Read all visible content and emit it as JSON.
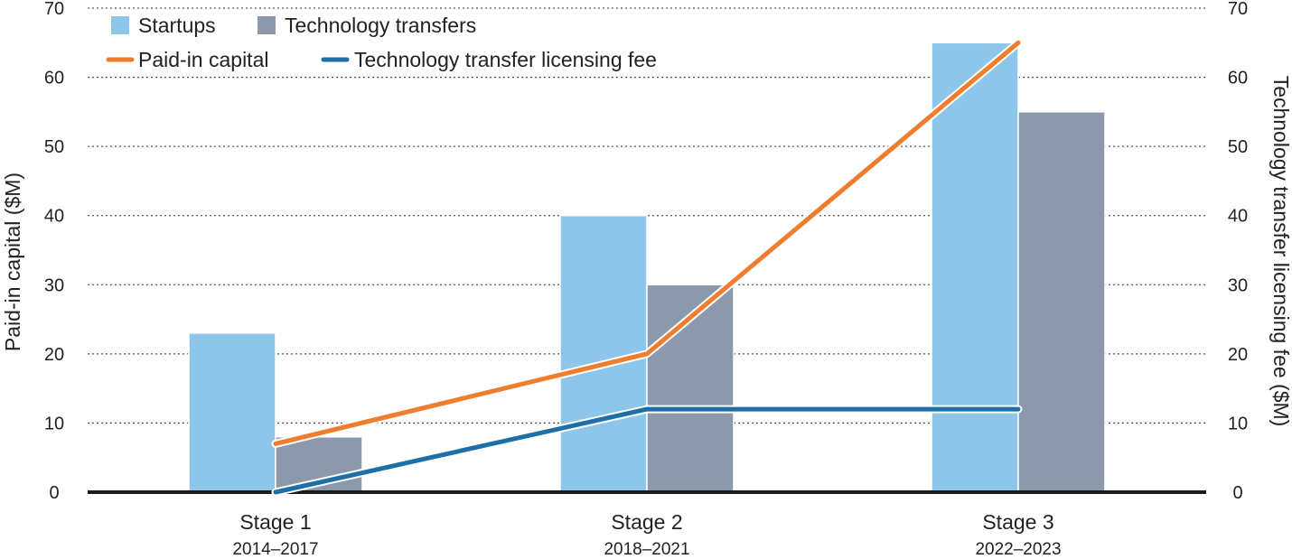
{
  "chart_data": {
    "type": "bar",
    "categories": [
      "Stage 1",
      "Stage 2",
      "Stage 3"
    ],
    "category_sublabels": [
      "2014–2017",
      "2018–2021",
      "2022–2023"
    ],
    "series": [
      {
        "name": "Startups",
        "kind": "bar",
        "axis": "left",
        "color": "#8dc6e8",
        "values": [
          23,
          40,
          65
        ]
      },
      {
        "name": "Technology transfers",
        "kind": "bar",
        "axis": "left",
        "color": "#8c99ac",
        "values": [
          8,
          30,
          55
        ]
      },
      {
        "name": "Paid-in capital",
        "kind": "line",
        "axis": "left",
        "color": "#f07d2d",
        "values": [
          7,
          20,
          65
        ]
      },
      {
        "name": "Technology transfer licensing fee",
        "kind": "line",
        "axis": "right",
        "color": "#1d6fa8",
        "values": [
          0,
          12,
          12
        ]
      }
    ],
    "ylabel": "Paid-in capital ($M)",
    "ylabel_right": "Technology transfer licensing fee ($M)",
    "ylim": [
      0,
      70
    ],
    "yticks": [
      0,
      10,
      20,
      30,
      40,
      50,
      60,
      70
    ],
    "grid": true,
    "legend_position": "top-left"
  }
}
